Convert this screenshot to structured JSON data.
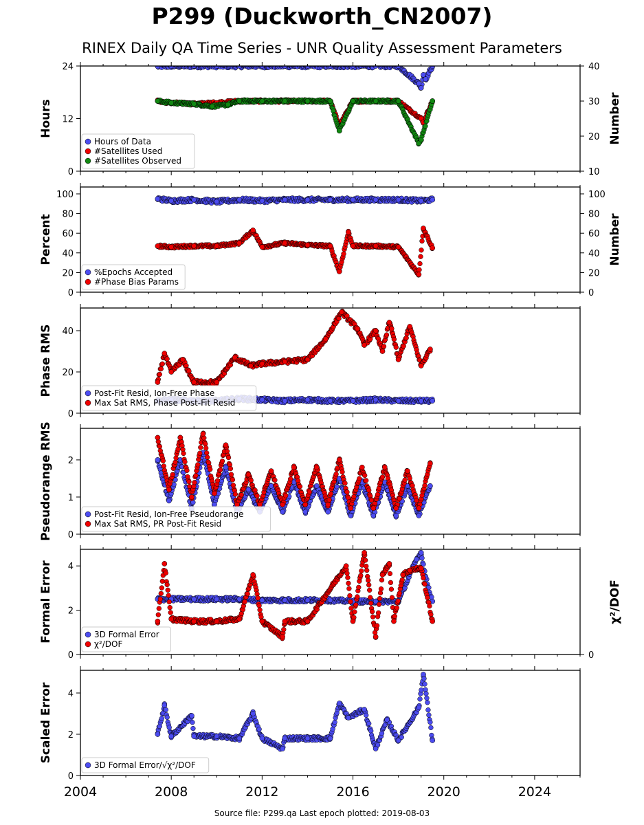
{
  "header": {
    "title": "P299 (Duckworth_CN2007)",
    "subtitle": "RINEX Daily QA Time Series - UNR Quality Assessment Parameters"
  },
  "footer": {
    "source": "Source file: P299.qa Last epoch plotted: 2019-08-03"
  },
  "colors": {
    "blue": "#4c4cf0",
    "red": "#ee0000",
    "green": "#118811"
  },
  "chart_data": [
    {
      "type": "scatter",
      "xlim": [
        2004,
        2026
      ],
      "x_ticks": [
        2004,
        2008,
        2012,
        2016,
        2020,
        2024
      ],
      "ylabel": "Hours",
      "ylim": [
        0,
        24
      ],
      "y_ticks": [
        0,
        12,
        24
      ],
      "y2label": "Number",
      "y2lim": [
        10,
        40
      ],
      "y2_ticks": [
        10,
        20,
        30,
        40
      ],
      "legend_position": "lower-left",
      "series": [
        {
          "name": "Hours of Data",
          "color": "blue",
          "axis": "left",
          "x": [
            2007.4,
            2008,
            2009,
            2010,
            2011,
            2012,
            2013,
            2014,
            2015,
            2016,
            2017,
            2018,
            2018.9,
            2019.0,
            2019.1,
            2019.2,
            2019.5
          ],
          "y": [
            23.9,
            24,
            24,
            24,
            24,
            24,
            24,
            24,
            24,
            24,
            24,
            24,
            20,
            19,
            22,
            21,
            24
          ]
        },
        {
          "name": "#Satellites Used",
          "color": "red",
          "axis": "right",
          "x": [
            2007.4,
            2008,
            2009,
            2010,
            2011,
            2012,
            2013,
            2014,
            2015,
            2015.4,
            2016,
            2017,
            2018,
            2019.0,
            2019.1,
            2019.5
          ],
          "y": [
            30,
            29.5,
            29.2,
            29.5,
            30,
            30,
            30,
            30,
            30,
            23,
            30,
            30,
            30,
            25,
            24,
            30
          ]
        },
        {
          "name": "#Satellites Observed",
          "color": "green",
          "axis": "right",
          "x": [
            2007.4,
            2008,
            2009,
            2009.8,
            2010.5,
            2011,
            2012,
            2013,
            2014,
            2015,
            2015.4,
            2016,
            2017,
            2018,
            2018.9,
            2019.0,
            2019.5
          ],
          "y": [
            30,
            29.5,
            29.2,
            28.5,
            29,
            30,
            30,
            30,
            30,
            30,
            21.5,
            30,
            30,
            30,
            18,
            19,
            30
          ]
        }
      ]
    },
    {
      "type": "scatter",
      "xlim": [
        2004,
        2026
      ],
      "x_ticks": [
        2004,
        2008,
        2012,
        2016,
        2020,
        2024
      ],
      "ylabel": "Percent",
      "ylim": [
        0,
        107
      ],
      "y_ticks": [
        0,
        20,
        40,
        60,
        80,
        100
      ],
      "y2label": "Number",
      "y2lim": [
        0,
        107
      ],
      "y2_ticks": [
        0,
        20,
        40,
        60,
        80,
        100
      ],
      "legend_position": "lower-left",
      "series": [
        {
          "name": "%Epochs Accepted",
          "color": "blue",
          "axis": "left",
          "x": [
            2007.4,
            2008,
            2009,
            2010,
            2011,
            2012,
            2013,
            2014,
            2015,
            2016,
            2017,
            2018,
            2019,
            2019.5
          ],
          "y": [
            95,
            93,
            94,
            92,
            94,
            93,
            94,
            94,
            94,
            94,
            94,
            94,
            93,
            94
          ]
        },
        {
          "name": "#Phase Bias Params",
          "color": "red",
          "axis": "right",
          "x": [
            2007.4,
            2008,
            2009,
            2010,
            2011,
            2011.6,
            2012,
            2013,
            2014,
            2015,
            2015.4,
            2015.8,
            2016,
            2017,
            2018,
            2018.9,
            2019.1,
            2019.5
          ],
          "y": [
            47,
            46,
            47,
            47,
            50,
            63,
            46,
            50,
            48,
            47,
            21,
            61,
            47,
            47,
            46,
            18,
            65,
            45
          ]
        }
      ]
    },
    {
      "type": "scatter",
      "xlim": [
        2004,
        2026
      ],
      "x_ticks": [
        2004,
        2008,
        2012,
        2016,
        2020,
        2024
      ],
      "ylabel": "Phase RMS",
      "ylim": [
        0,
        51
      ],
      "y_ticks": [
        0,
        20,
        40
      ],
      "legend_position": "lower-left",
      "series": [
        {
          "name": "Post-Fit Resid, Ion-Free Phase",
          "color": "blue",
          "axis": "left",
          "x": [
            2007.4,
            2008,
            2009,
            2010,
            2011,
            2012,
            2013,
            2014,
            2015,
            2016,
            2017,
            2018,
            2019,
            2019.5
          ],
          "y": [
            6,
            6.5,
            6,
            6,
            7,
            6.5,
            6,
            6.5,
            6,
            6,
            6.5,
            6,
            6,
            6
          ]
        },
        {
          "name": "Max Sat RMS, Phase Post-Fit Resid",
          "color": "red",
          "axis": "left",
          "x": [
            2007.4,
            2007.7,
            2008,
            2008.5,
            2009,
            2010,
            2010.8,
            2011.5,
            2012,
            2013,
            2014,
            2014.8,
            2015.5,
            2016.2,
            2016.5,
            2017.0,
            2017.3,
            2017.6,
            2017.7,
            2018.0,
            2018.5,
            2019.0,
            2019.4
          ],
          "y": [
            15,
            29,
            20,
            26,
            15,
            15,
            27,
            23,
            24,
            25,
            26,
            36,
            49,
            41,
            33,
            40,
            30,
            44,
            41,
            26,
            42,
            23,
            31
          ]
        }
      ]
    },
    {
      "type": "scatter",
      "xlim": [
        2004,
        2026
      ],
      "x_ticks": [
        2004,
        2008,
        2012,
        2016,
        2020,
        2024
      ],
      "ylabel": "Pseudorange RMS",
      "ylim": [
        0,
        2.85
      ],
      "y_ticks": [
        0,
        1,
        2
      ],
      "legend_position": "lower-left",
      "series": [
        {
          "name": "Post-Fit Resid, Ion-Free Pseudorange",
          "color": "blue",
          "axis": "left",
          "x": [
            2007.4,
            2007.9,
            2008.4,
            2008.9,
            2009.4,
            2009.9,
            2010.4,
            2010.9,
            2011.4,
            2011.9,
            2012.4,
            2012.9,
            2013.4,
            2013.9,
            2014.4,
            2014.9,
            2015.4,
            2015.9,
            2016.4,
            2016.9,
            2017.4,
            2017.9,
            2018.4,
            2018.9,
            2019.4
          ],
          "y": [
            2.0,
            0.9,
            2.0,
            0.7,
            2.2,
            0.8,
            1.8,
            0.6,
            1.2,
            0.6,
            1.3,
            0.6,
            1.4,
            0.6,
            1.3,
            0.6,
            1.5,
            0.5,
            1.4,
            0.5,
            1.4,
            0.5,
            1.3,
            0.5,
            1.3
          ]
        },
        {
          "name": "Max Sat RMS, PR Post-Fit Resid",
          "color": "red",
          "axis": "left",
          "x": [
            2007.4,
            2007.9,
            2008.4,
            2008.9,
            2009.4,
            2009.9,
            2010.4,
            2010.9,
            2011.4,
            2011.9,
            2012.4,
            2012.9,
            2013.4,
            2013.9,
            2014.4,
            2014.9,
            2015.4,
            2015.9,
            2016.4,
            2016.9,
            2017.4,
            2017.9,
            2018.4,
            2018.9,
            2019.4
          ],
          "y": [
            2.6,
            1.2,
            2.6,
            1.0,
            2.7,
            1.1,
            2.4,
            0.8,
            1.6,
            0.8,
            1.7,
            0.8,
            1.8,
            0.8,
            1.8,
            0.8,
            2.0,
            0.7,
            1.8,
            0.7,
            1.8,
            0.7,
            1.7,
            0.7,
            1.9
          ]
        }
      ]
    },
    {
      "type": "scatter",
      "xlim": [
        2004,
        2026
      ],
      "x_ticks": [
        2004,
        2008,
        2012,
        2016,
        2020,
        2024
      ],
      "ylabel": "Formal Error",
      "ylim": [
        0,
        4.75
      ],
      "y_ticks": [
        0,
        2,
        4
      ],
      "y2label": "χ²/DOF",
      "y2_ticks": [
        0
      ],
      "legend_position": "lower-left",
      "series": [
        {
          "name": "3D Formal Error",
          "color": "blue",
          "axis": "left",
          "x": [
            2007.4,
            2008,
            2009,
            2010,
            2011,
            2012,
            2013,
            2014,
            2015,
            2016,
            2017,
            2018,
            2018.8,
            2019.0,
            2019.2,
            2019.5
          ],
          "y": [
            2.5,
            2.5,
            2.5,
            2.5,
            2.5,
            2.45,
            2.45,
            2.45,
            2.45,
            2.4,
            2.4,
            2.4,
            4.3,
            4.6,
            3.5,
            2.4
          ]
        },
        {
          "name": "χ²/DOF",
          "color": "red",
          "axis": "left",
          "x": [
            2007.4,
            2007.7,
            2008,
            2009,
            2010,
            2011,
            2011.6,
            2012,
            2012.9,
            2013,
            2014,
            2015.7,
            2016,
            2016.5,
            2017.0,
            2017.3,
            2017.6,
            2017.8,
            2018.2,
            2018.5,
            2019.0,
            2019.5
          ],
          "y": [
            1.5,
            4.1,
            1.6,
            1.5,
            1.5,
            1.6,
            3.6,
            1.5,
            0.8,
            1.5,
            1.5,
            4.0,
            1.5,
            4.6,
            0.8,
            3.6,
            4.1,
            1.5,
            3.6,
            3.8,
            3.9,
            1.5
          ]
        }
      ]
    },
    {
      "type": "scatter",
      "xlim": [
        2004,
        2026
      ],
      "x_ticks": [
        2004,
        2008,
        2012,
        2016,
        2020,
        2024
      ],
      "ylabel": "Scaled Error",
      "ylim": [
        0,
        5.1
      ],
      "y_ticks": [
        0,
        2,
        4
      ],
      "legend_position": "lower-left",
      "series": [
        {
          "name": "3D Formal Error/√χ²/DOF",
          "color": "blue",
          "axis": "left",
          "x": [
            2007.4,
            2007.7,
            2008,
            2008.9,
            2009,
            2010,
            2011,
            2011.6,
            2012,
            2012.9,
            2013,
            2014,
            2015,
            2015.4,
            2015.8,
            2016.5,
            2017,
            2017.5,
            2018,
            2018.9,
            2019.1,
            2019.5
          ],
          "y": [
            2.0,
            3.4,
            1.9,
            2.9,
            1.9,
            1.9,
            1.8,
            3.0,
            1.8,
            1.3,
            1.8,
            1.8,
            1.8,
            3.5,
            2.8,
            3.2,
            1.3,
            2.7,
            1.7,
            3.3,
            4.9,
            1.7
          ]
        }
      ]
    }
  ]
}
